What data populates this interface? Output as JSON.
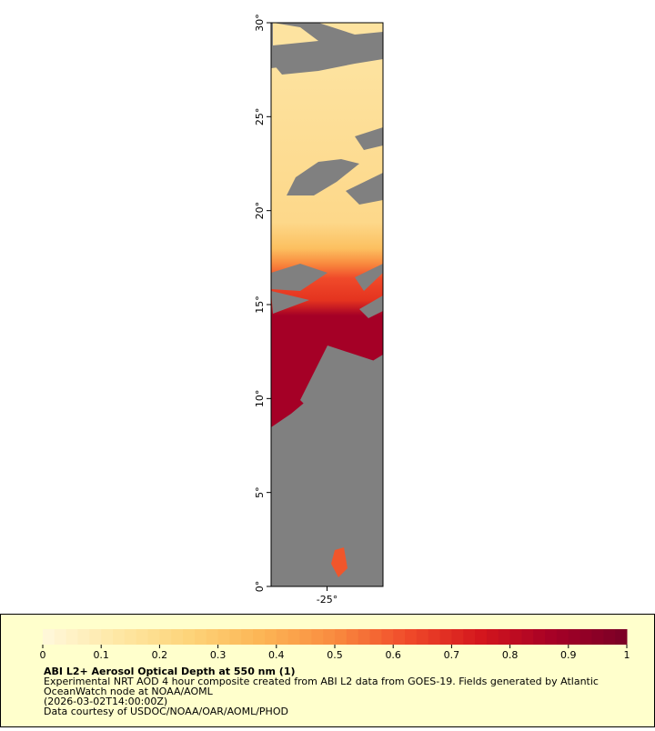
{
  "chart_data": {
    "type": "map",
    "xlim": [
      -28,
      -22
    ],
    "ylim": [
      0,
      30
    ],
    "xticks": [
      {
        "value": -25,
        "label": "-25°"
      }
    ],
    "yticks": [
      {
        "value": 0,
        "label": "0°"
      },
      {
        "value": 5,
        "label": "5°"
      },
      {
        "value": 10,
        "label": "10°"
      },
      {
        "value": 15,
        "label": "15°"
      },
      {
        "value": 20,
        "label": "20°"
      },
      {
        "value": 25,
        "label": "25°"
      },
      {
        "value": 30,
        "label": "30°"
      }
    ],
    "colorbar": {
      "lim": [
        0,
        1
      ],
      "ticks": [
        0,
        0.1,
        0.2,
        0.3,
        0.4,
        0.5,
        0.6,
        0.7,
        0.8,
        0.9,
        1
      ],
      "colors": [
        "#fff8dc",
        "#fee8a6",
        "#fdd47a",
        "#fcb555",
        "#f98b3f",
        "#f04a2a",
        "#d4161d",
        "#a50026",
        "#7a0026"
      ]
    },
    "legend_title": "ABI L2+ Aerosol Optical Depth at 550 nm (1)",
    "legend_lines": [
      "Experimental NRT AOD 4 hour composite created from ABI L2 data from GOES-19. Fields generated by Atlantic",
      "OceanWatch node at NOAA/AOML",
      "(2026-03-02T14:00:00Z)",
      "Data courtesy of USDOC/NOAA/OAR/AOML/PHOD"
    ]
  }
}
